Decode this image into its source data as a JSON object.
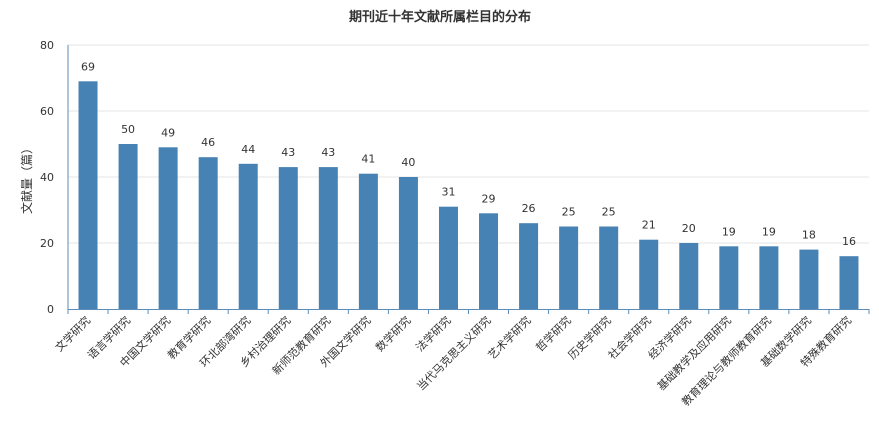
{
  "chart_data": {
    "type": "bar",
    "title": "期刊近十年文献所属栏目的分布",
    "ylabel": "文献量（篇）",
    "xlabel": "",
    "ylim": [
      0,
      80
    ],
    "yticks": [
      0,
      20,
      40,
      60,
      80
    ],
    "grid": true,
    "bar_color": "#4682b4",
    "categories": [
      "文学研究",
      "语言学研究",
      "中国文学研究",
      "教育学研究",
      "环北部湾研究",
      "乡村治理研究",
      "新师范教育研究",
      "外国文学研究",
      "数学研究",
      "法学研究",
      "当代马克思主义研究",
      "艺术学研究",
      "哲学研究",
      "历史学研究",
      "社会学研究",
      "经济学研究",
      "基础教学及应用研究",
      "教育理论与教师教育研究",
      "基础数学研究",
      "特殊教育研究"
    ],
    "values": [
      69,
      50,
      49,
      46,
      44,
      43,
      43,
      41,
      40,
      31,
      29,
      26,
      25,
      25,
      21,
      20,
      19,
      19,
      18,
      16
    ]
  }
}
